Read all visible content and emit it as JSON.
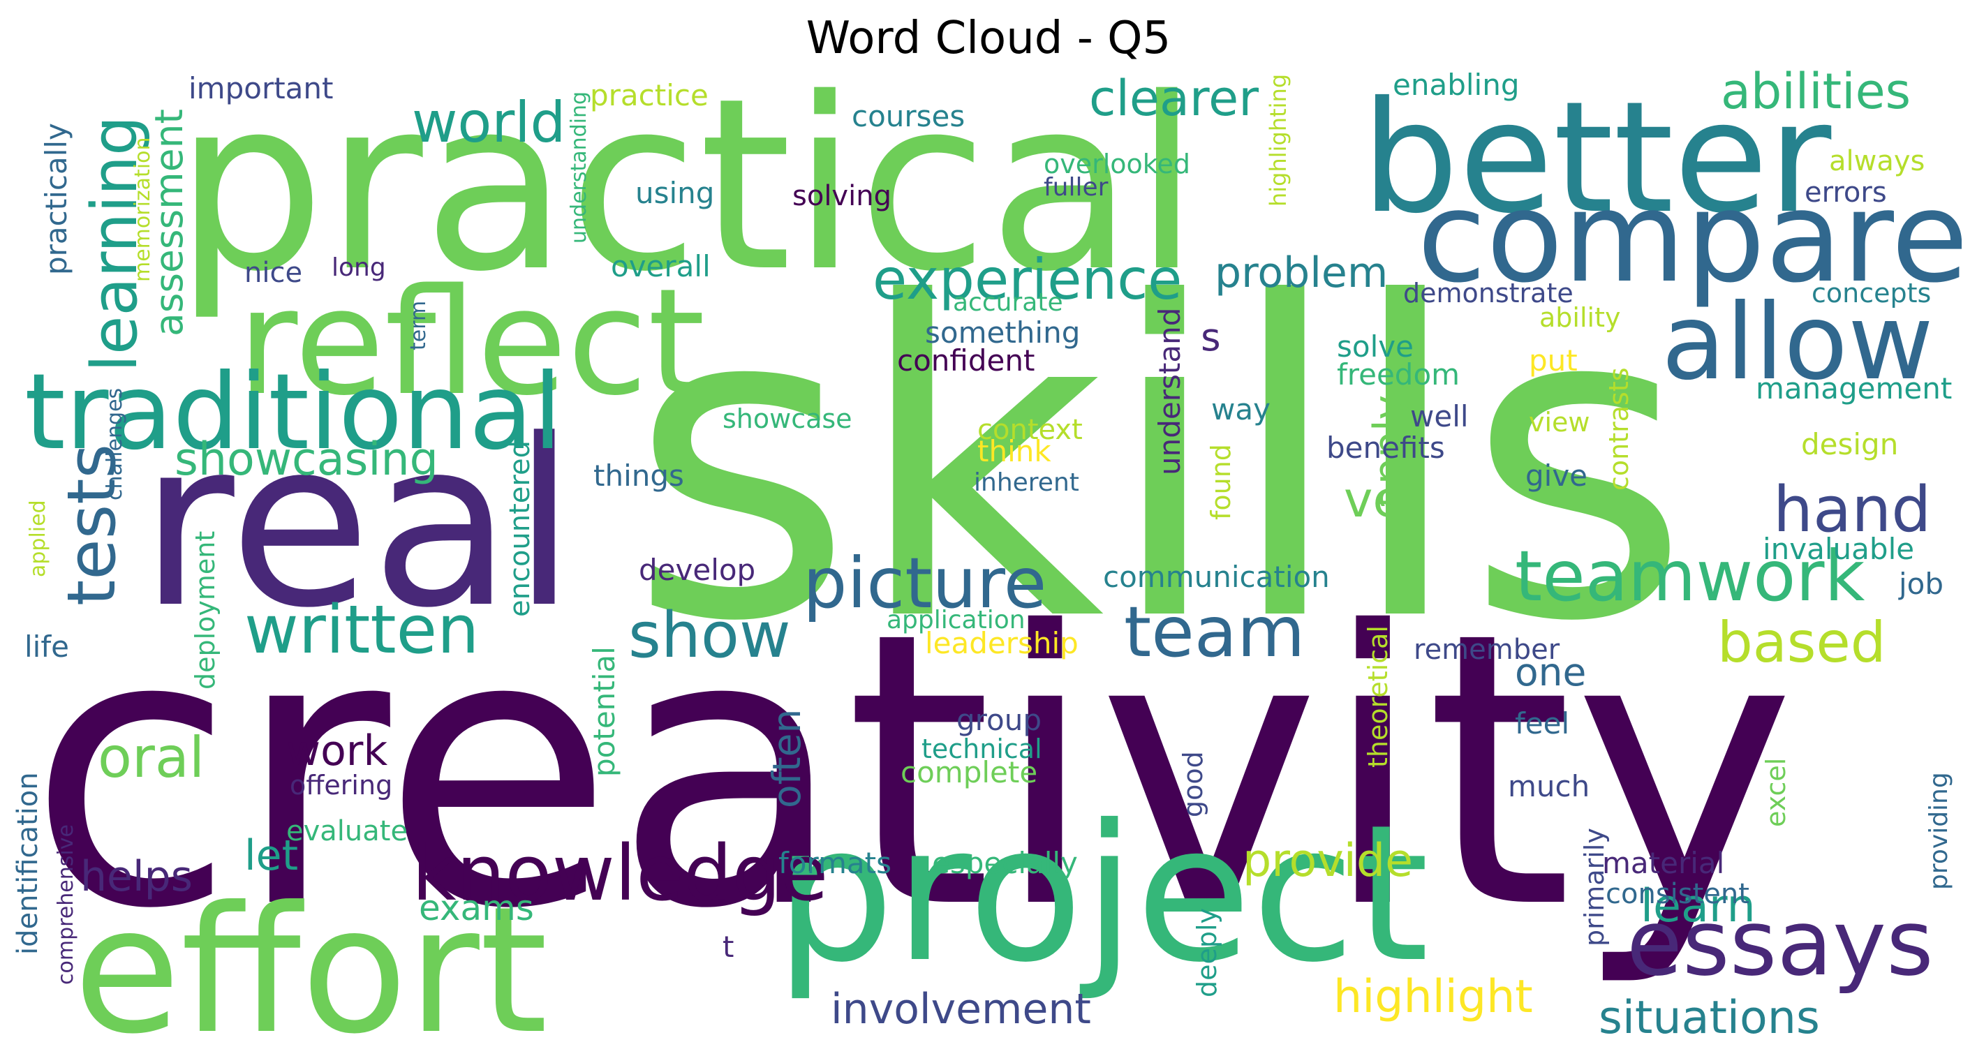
{
  "title": "Word Cloud - Q5",
  "palette": {
    "v1": "#440154",
    "v2": "#482878",
    "v3": "#3e4989",
    "v4": "#31688e",
    "v5": "#26828e",
    "v6": "#1f9e89",
    "v7": "#35b779",
    "v8": "#6ece58",
    "v9": "#b5de2b",
    "v10": "#fde725"
  },
  "words": [
    {
      "text": "skills",
      "c": "v8",
      "o": "h"
    },
    {
      "text": "creativity",
      "c": "v1",
      "o": "h"
    },
    {
      "text": "practical",
      "c": "v8",
      "o": "h"
    },
    {
      "text": "real",
      "c": "v2",
      "o": "h"
    },
    {
      "text": "project",
      "c": "v7",
      "o": "h"
    },
    {
      "text": "effort",
      "c": "v8",
      "o": "h"
    },
    {
      "text": "better",
      "c": "v5",
      "o": "h"
    },
    {
      "text": "reflect",
      "c": "v8",
      "o": "h"
    },
    {
      "text": "compared",
      "c": "v4",
      "o": "h"
    },
    {
      "text": "traditional",
      "c": "v6",
      "o": "h"
    },
    {
      "text": "allow",
      "c": "v4",
      "o": "h"
    },
    {
      "text": "essays",
      "c": "v2",
      "o": "h"
    },
    {
      "text": "knowledge",
      "c": "v1",
      "o": "h"
    },
    {
      "text": "teamwork",
      "c": "v7",
      "o": "h"
    },
    {
      "text": "team",
      "c": "v4",
      "o": "h"
    },
    {
      "text": "picture",
      "c": "v4",
      "o": "h"
    },
    {
      "text": "written",
      "c": "v6",
      "o": "h"
    },
    {
      "text": "experience",
      "c": "v6",
      "o": "h"
    },
    {
      "text": "show",
      "c": "v5",
      "o": "h"
    },
    {
      "text": "learning",
      "c": "v6",
      "o": "v"
    },
    {
      "text": "tests",
      "c": "v4",
      "o": "v"
    },
    {
      "text": "world",
      "c": "v6",
      "o": "h"
    },
    {
      "text": "hand",
      "c": "v3",
      "o": "h"
    },
    {
      "text": "based",
      "c": "v9",
      "o": "h"
    },
    {
      "text": "oral",
      "c": "v8",
      "o": "h"
    },
    {
      "text": "abilities",
      "c": "v7",
      "o": "h"
    },
    {
      "text": "clearer",
      "c": "v6",
      "o": "h"
    },
    {
      "text": "showcasing",
      "c": "v7",
      "o": "h"
    },
    {
      "text": "ve",
      "c": "v8",
      "o": "h"
    },
    {
      "text": "apply",
      "c": "v8",
      "o": "v"
    },
    {
      "text": "problem",
      "c": "v5",
      "o": "h"
    },
    {
      "text": "highlight",
      "c": "v10",
      "o": "h"
    },
    {
      "text": "learn",
      "c": "v6",
      "o": "h"
    },
    {
      "text": "situations",
      "c": "v5",
      "o": "h"
    },
    {
      "text": "involvement",
      "c": "v3",
      "o": "h"
    },
    {
      "text": "provide",
      "c": "v9",
      "o": "h"
    },
    {
      "text": "assessment",
      "c": "v7",
      "o": "v"
    },
    {
      "text": "work",
      "c": "v1",
      "o": "h"
    },
    {
      "text": "helps",
      "c": "v2",
      "o": "h"
    },
    {
      "text": "let",
      "c": "v6",
      "o": "h"
    },
    {
      "text": "exams",
      "c": "v7",
      "o": "h"
    },
    {
      "text": "often",
      "c": "v4",
      "o": "v"
    },
    {
      "text": "one",
      "c": "v4",
      "o": "h"
    },
    {
      "text": "s",
      "c": "v2",
      "o": "h"
    },
    {
      "text": "understand",
      "c": "v2",
      "o": "v"
    },
    {
      "text": "important",
      "c": "v3",
      "o": "h"
    },
    {
      "text": "practice",
      "c": "v9",
      "o": "h"
    },
    {
      "text": "courses",
      "c": "v5",
      "o": "h"
    },
    {
      "text": "enabling",
      "c": "v6",
      "o": "h"
    },
    {
      "text": "overlooked",
      "c": "v7",
      "o": "h"
    },
    {
      "text": "fuller",
      "c": "v3",
      "o": "h"
    },
    {
      "text": "always",
      "c": "v9",
      "o": "h"
    },
    {
      "text": "errors",
      "c": "v3",
      "o": "h"
    },
    {
      "text": "using",
      "c": "v5",
      "o": "h"
    },
    {
      "text": "solving",
      "c": "v1",
      "o": "h"
    },
    {
      "text": "practically",
      "c": "v4",
      "o": "v"
    },
    {
      "text": "memorization",
      "c": "v9",
      "o": "v"
    },
    {
      "text": "understanding",
      "c": "v7",
      "o": "v"
    },
    {
      "text": "highlighting",
      "c": "v9",
      "o": "v"
    },
    {
      "text": "nice",
      "c": "v3",
      "o": "h"
    },
    {
      "text": "long",
      "c": "v2",
      "o": "h"
    },
    {
      "text": "overall",
      "c": "v6",
      "o": "h"
    },
    {
      "text": "demonstrate",
      "c": "v3",
      "o": "h"
    },
    {
      "text": "concepts",
      "c": "v5",
      "o": "h"
    },
    {
      "text": "accurate",
      "c": "v7",
      "o": "h"
    },
    {
      "text": "ability",
      "c": "v9",
      "o": "h"
    },
    {
      "text": "something",
      "c": "v4",
      "o": "h"
    },
    {
      "text": "confident",
      "c": "v1",
      "o": "h"
    },
    {
      "text": "solve",
      "c": "v6",
      "o": "h"
    },
    {
      "text": "freedom",
      "c": "v7",
      "o": "h"
    },
    {
      "text": "put",
      "c": "v10",
      "o": "h"
    },
    {
      "text": "management",
      "c": "v6",
      "o": "h"
    },
    {
      "text": "term",
      "c": "v4",
      "o": "v"
    },
    {
      "text": "challenges",
      "c": "v4",
      "o": "v"
    },
    {
      "text": "showcase",
      "c": "v7",
      "o": "h"
    },
    {
      "text": "way",
      "c": "v5",
      "o": "h"
    },
    {
      "text": "well",
      "c": "v3",
      "o": "h"
    },
    {
      "text": "view",
      "c": "v9",
      "o": "h"
    },
    {
      "text": "context",
      "c": "v9",
      "o": "h"
    },
    {
      "text": "think",
      "c": "v10",
      "o": "h"
    },
    {
      "text": "benefits",
      "c": "v3",
      "o": "h"
    },
    {
      "text": "design",
      "c": "v9",
      "o": "h"
    },
    {
      "text": "inherent",
      "c": "v4",
      "o": "h"
    },
    {
      "text": "things",
      "c": "v4",
      "o": "h"
    },
    {
      "text": "encountered",
      "c": "v6",
      "o": "v"
    },
    {
      "text": "found",
      "c": "v9",
      "o": "v"
    },
    {
      "text": "contrasts",
      "c": "v9",
      "o": "v"
    },
    {
      "text": "give",
      "c": "v4",
      "o": "h"
    },
    {
      "text": "invaluable",
      "c": "v6",
      "o": "h"
    },
    {
      "text": "applied",
      "c": "v9",
      "o": "v"
    },
    {
      "text": "develop",
      "c": "v2",
      "o": "h"
    },
    {
      "text": "communication",
      "c": "v5",
      "o": "h"
    },
    {
      "text": "job",
      "c": "v4",
      "o": "h"
    },
    {
      "text": "application",
      "c": "v7",
      "o": "h"
    },
    {
      "text": "leadership",
      "c": "v10",
      "o": "h"
    },
    {
      "text": "remember",
      "c": "v3",
      "o": "h"
    },
    {
      "text": "life",
      "c": "v4",
      "o": "h"
    },
    {
      "text": "deployment",
      "c": "v7",
      "o": "v"
    },
    {
      "text": "theoretical",
      "c": "v9",
      "o": "v"
    },
    {
      "text": "group",
      "c": "v3",
      "o": "h"
    },
    {
      "text": "technical",
      "c": "v6",
      "o": "h"
    },
    {
      "text": "feel",
      "c": "v4",
      "o": "h"
    },
    {
      "text": "complete",
      "c": "v8",
      "o": "h"
    },
    {
      "text": "potential",
      "c": "v7",
      "o": "v"
    },
    {
      "text": "offering",
      "c": "v2",
      "o": "h"
    },
    {
      "text": "good",
      "c": "v3",
      "o": "v"
    },
    {
      "text": "much",
      "c": "v3",
      "o": "h"
    },
    {
      "text": "excel",
      "c": "v8",
      "o": "v"
    },
    {
      "text": "identification",
      "c": "v4",
      "o": "v"
    },
    {
      "text": "evaluate",
      "c": "v7",
      "o": "h"
    },
    {
      "text": "formats",
      "c": "v5",
      "o": "h"
    },
    {
      "text": "especially",
      "c": "v7",
      "o": "h"
    },
    {
      "text": "primarily",
      "c": "v3",
      "o": "v"
    },
    {
      "text": "material",
      "c": "v2",
      "o": "h"
    },
    {
      "text": "consistent",
      "c": "v4",
      "o": "h"
    },
    {
      "text": "providing",
      "c": "v4",
      "o": "v"
    },
    {
      "text": "comprehensive",
      "c": "v2",
      "o": "v"
    },
    {
      "text": "deeply",
      "c": "v6",
      "o": "v"
    },
    {
      "text": "t",
      "c": "v2",
      "o": "h"
    }
  ]
}
